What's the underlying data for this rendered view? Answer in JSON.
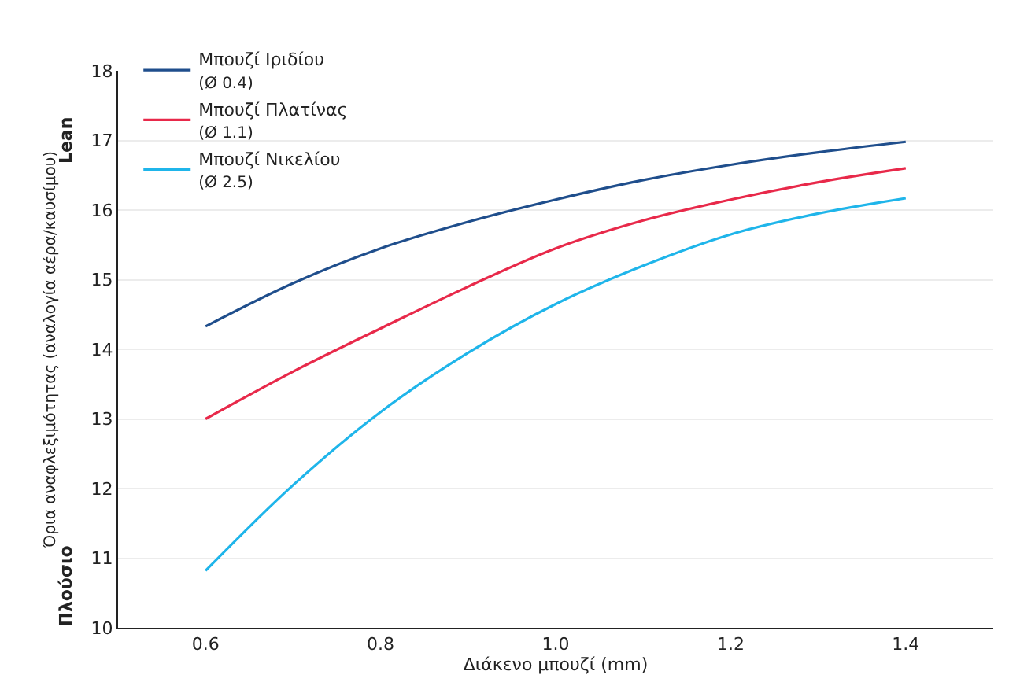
{
  "chart_data": {
    "type": "line",
    "xlabel": "Διάκενο μπουζί (mm)",
    "ylabel": "Όρια αναφλεξιμότητας (αναλογία αέρα/καυσίμου)",
    "annotations": [
      "Lean",
      "Πλούσιο"
    ],
    "x": [
      0.6,
      0.7,
      0.8,
      0.9,
      1.0,
      1.1,
      1.2,
      1.3,
      1.4
    ],
    "series": [
      {
        "name": "Μπουζί Ιριδίου\n(Ø 0.4)",
        "color": "#1f4e8c",
        "values": [
          14.33,
          14.95,
          15.45,
          15.83,
          16.15,
          16.43,
          16.65,
          16.83,
          16.98
        ]
      },
      {
        "name": "Μπουζί Πλατίνας\n(Ø 1.1)",
        "color": "#e8294a",
        "values": [
          13.0,
          13.68,
          14.3,
          14.9,
          15.45,
          15.85,
          16.15,
          16.4,
          16.6
        ]
      },
      {
        "name": "Μπουζί Νικελίου\n(Ø 2.5)",
        "color": "#1fb5ea",
        "values": [
          10.82,
          12.05,
          13.1,
          13.95,
          14.65,
          15.2,
          15.65,
          15.95,
          16.17
        ]
      }
    ],
    "xlim": [
      0.5,
      1.5
    ],
    "xticks": [
      0.6,
      0.8,
      {
        "value": 1,
        "label": "1.0"
      },
      1.2,
      1.4
    ],
    "ylim": [
      10,
      18
    ],
    "yticks": [
      10,
      11,
      12,
      13,
      14,
      15,
      16,
      17,
      18
    ],
    "grid": "y",
    "legend": "top left",
    "marker": "none",
    "line_style": "solid"
  }
}
